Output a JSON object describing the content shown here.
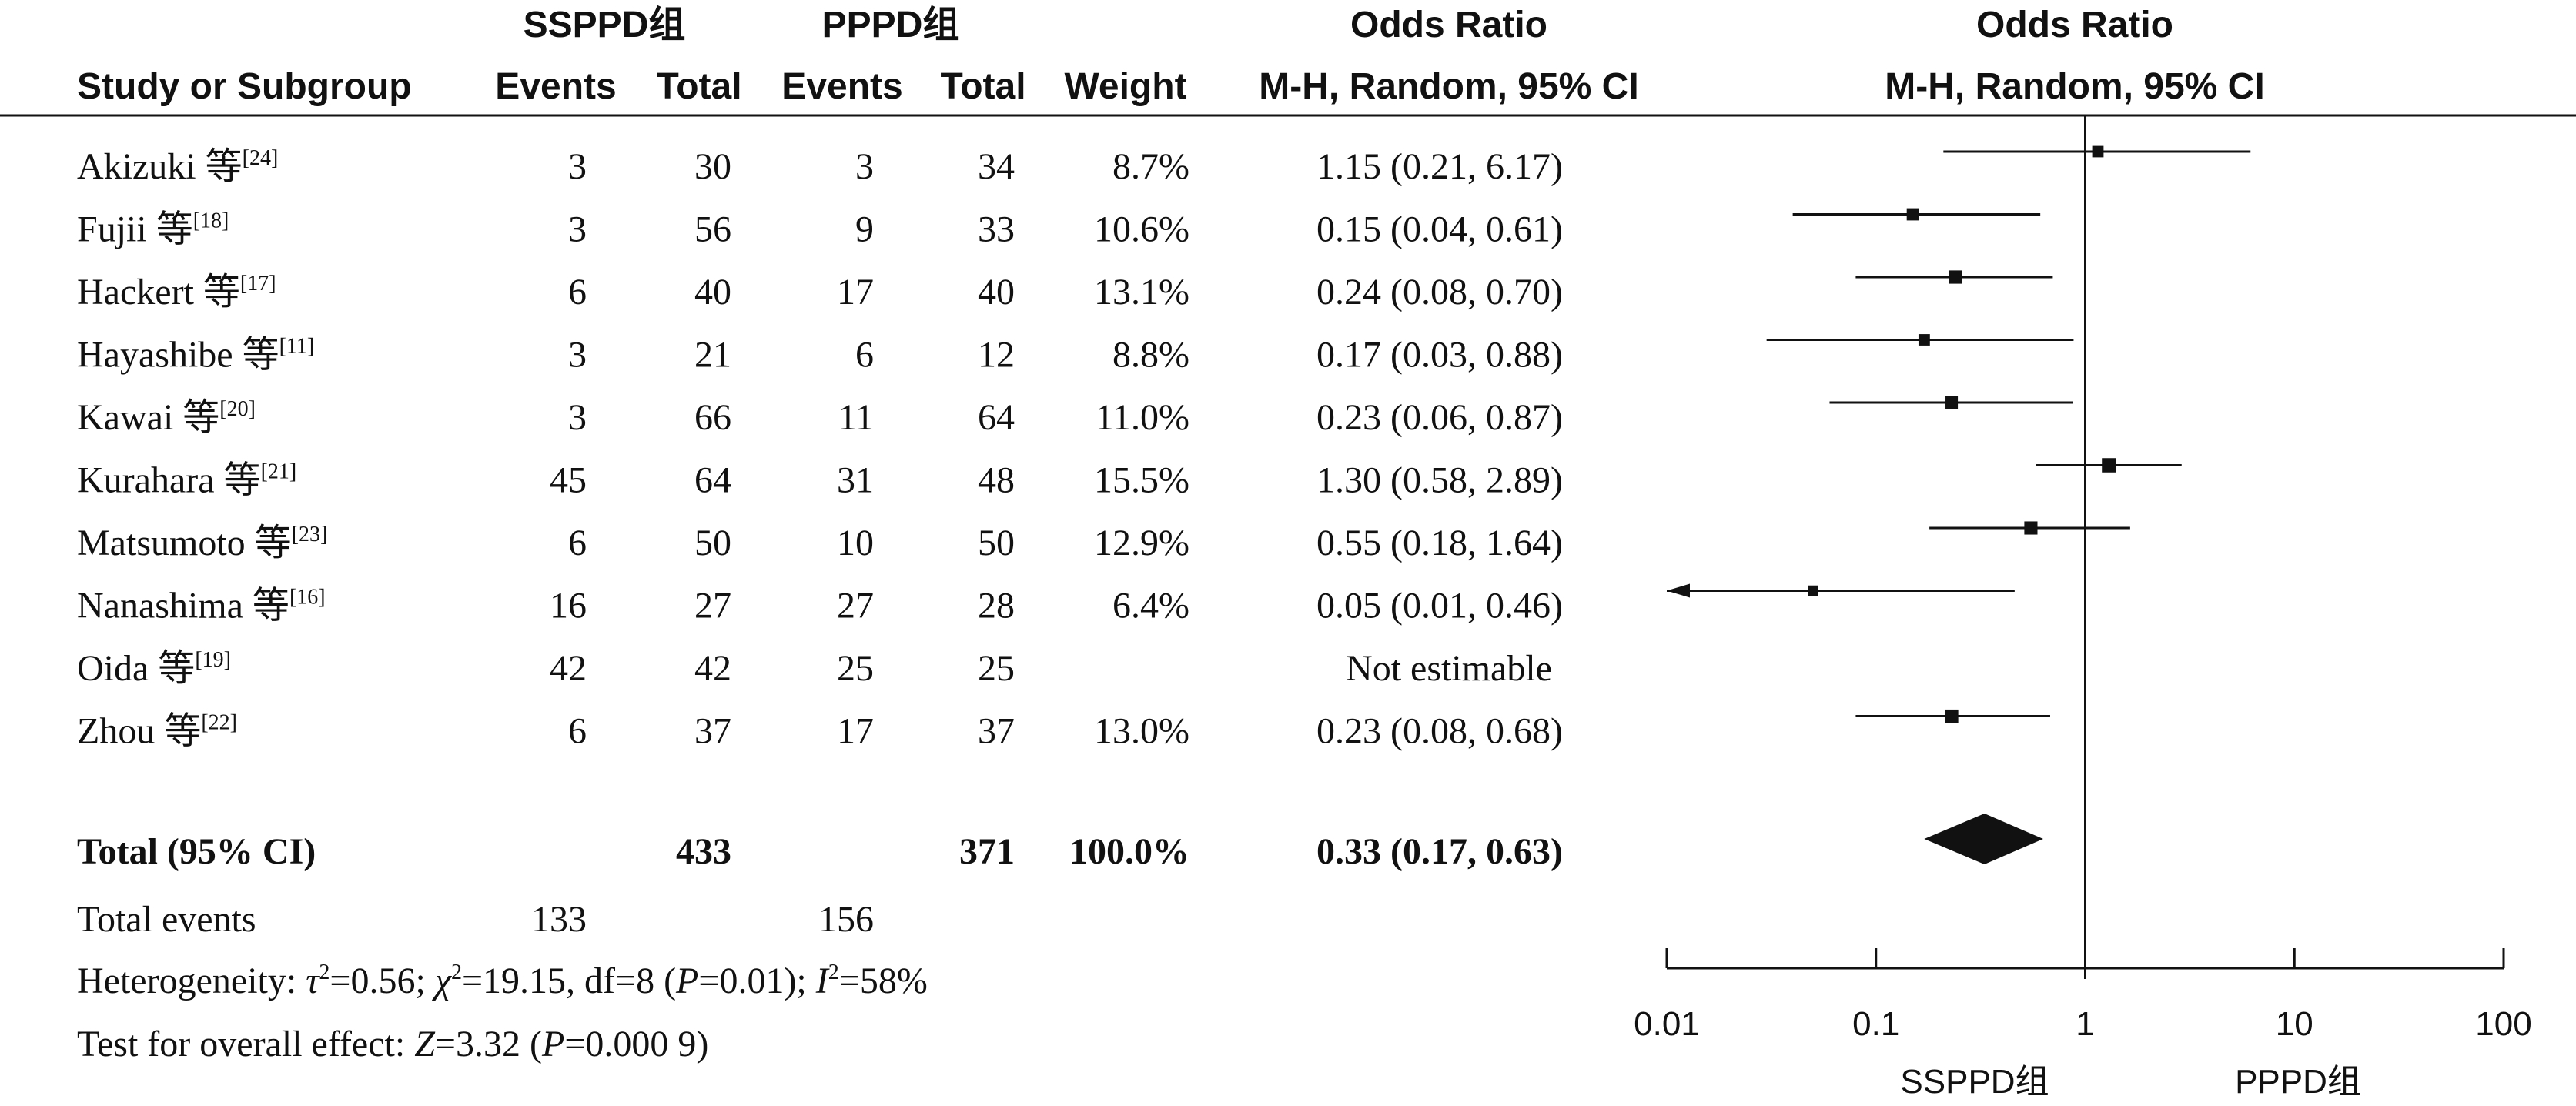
{
  "header": {
    "group1": "SSPPD组",
    "group2": "PPPD组",
    "or_title": "Odds Ratio",
    "col_study": "Study or Subgroup",
    "col_events": "Events",
    "col_total": "Total",
    "col_weight": "Weight",
    "col_method": "M-H, Random, 95% CI",
    "plot_title": "Odds Ratio",
    "plot_method": "M-H, Random, 95% CI"
  },
  "studies": [
    {
      "name": "Akizuki 等",
      "ref": "[24]",
      "e1": "3",
      "t1": "30",
      "e2": "3",
      "t2": "34",
      "weight": "8.7%",
      "ci": "1.15 (0.21, 6.17)"
    },
    {
      "name": "Fujii 等",
      "ref": "[18]",
      "e1": "3",
      "t1": "56",
      "e2": "9",
      "t2": "33",
      "weight": "10.6%",
      "ci": "0.15 (0.04, 0.61)"
    },
    {
      "name": "Hackert 等",
      "ref": "[17]",
      "e1": "6",
      "t1": "40",
      "e2": "17",
      "t2": "40",
      "weight": "13.1%",
      "ci": "0.24 (0.08, 0.70)"
    },
    {
      "name": "Hayashibe 等",
      "ref": "[11]",
      "e1": "3",
      "t1": "21",
      "e2": "6",
      "t2": "12",
      "weight": "8.8%",
      "ci": "0.17 (0.03, 0.88)"
    },
    {
      "name": "Kawai 等",
      "ref": "[20]",
      "e1": "3",
      "t1": "66",
      "e2": "11",
      "t2": "64",
      "weight": "11.0%",
      "ci": "0.23 (0.06, 0.87)"
    },
    {
      "name": "Kurahara 等",
      "ref": "[21]",
      "e1": "45",
      "t1": "64",
      "e2": "31",
      "t2": "48",
      "weight": "15.5%",
      "ci": "1.30 (0.58, 2.89)"
    },
    {
      "name": "Matsumoto 等",
      "ref": "[23]",
      "e1": "6",
      "t1": "50",
      "e2": "10",
      "t2": "50",
      "weight": "12.9%",
      "ci": "0.55 (0.18, 1.64)"
    },
    {
      "name": "Nanashima 等",
      "ref": "[16]",
      "e1": "16",
      "t1": "27",
      "e2": "27",
      "t2": "28",
      "weight": "6.4%",
      "ci": "0.05 (0.01, 0.46)"
    },
    {
      "name": "Oida 等",
      "ref": "[19]",
      "e1": "42",
      "t1": "42",
      "e2": "25",
      "t2": "25",
      "weight": "",
      "ci": "Not estimable"
    },
    {
      "name": "Zhou 等",
      "ref": "[22]",
      "e1": "6",
      "t1": "37",
      "e2": "17",
      "t2": "37",
      "weight": "13.0%",
      "ci": "0.23 (0.08, 0.68)"
    }
  ],
  "total": {
    "label": "Total (95% CI)",
    "t1": "433",
    "t2": "371",
    "weight": "100.0%",
    "ci": "0.33 (0.17, 0.63)"
  },
  "total_events": {
    "label": "Total events",
    "e1": "133",
    "e2": "156"
  },
  "heterogeneity": {
    "prefix": "Heterogeneity: ",
    "tau": "τ",
    "tau_val": "=0.56; ",
    "chi": "χ",
    "chi_val": "=19.15, df=8 (",
    "p": "P",
    "p_val": "=0.01); ",
    "i": "I",
    "i_val": "=58%"
  },
  "overall": {
    "prefix": "Test for overall effect: ",
    "z": "Z",
    "z_val": "=3.32 (",
    "p": "P",
    "p_val": "=0.000 9)"
  },
  "chart_data": {
    "type": "forest",
    "scale": "log",
    "xlim": [
      0.01,
      100
    ],
    "x_ticks": [
      0.01,
      0.1,
      1,
      10,
      100
    ],
    "x_tick_labels": [
      "0.01",
      "0.1",
      "1",
      "10",
      "100"
    ],
    "favours_left": "SSPPD组",
    "favours_right": "PPPD组",
    "studies": [
      {
        "or": 1.15,
        "lo": 0.21,
        "hi": 6.17,
        "weight": 8.7
      },
      {
        "or": 0.15,
        "lo": 0.04,
        "hi": 0.61,
        "weight": 10.6
      },
      {
        "or": 0.24,
        "lo": 0.08,
        "hi": 0.7,
        "weight": 13.1
      },
      {
        "or": 0.17,
        "lo": 0.03,
        "hi": 0.88,
        "weight": 8.8
      },
      {
        "or": 0.23,
        "lo": 0.06,
        "hi": 0.87,
        "weight": 11.0
      },
      {
        "or": 1.3,
        "lo": 0.58,
        "hi": 2.89,
        "weight": 15.5
      },
      {
        "or": 0.55,
        "lo": 0.18,
        "hi": 1.64,
        "weight": 12.9
      },
      {
        "or": 0.05,
        "lo": 0.01,
        "hi": 0.46,
        "weight": 6.4
      },
      null,
      {
        "or": 0.23,
        "lo": 0.08,
        "hi": 0.68,
        "weight": 13.0
      }
    ],
    "pooled": {
      "or": 0.33,
      "lo": 0.17,
      "hi": 0.63
    }
  }
}
